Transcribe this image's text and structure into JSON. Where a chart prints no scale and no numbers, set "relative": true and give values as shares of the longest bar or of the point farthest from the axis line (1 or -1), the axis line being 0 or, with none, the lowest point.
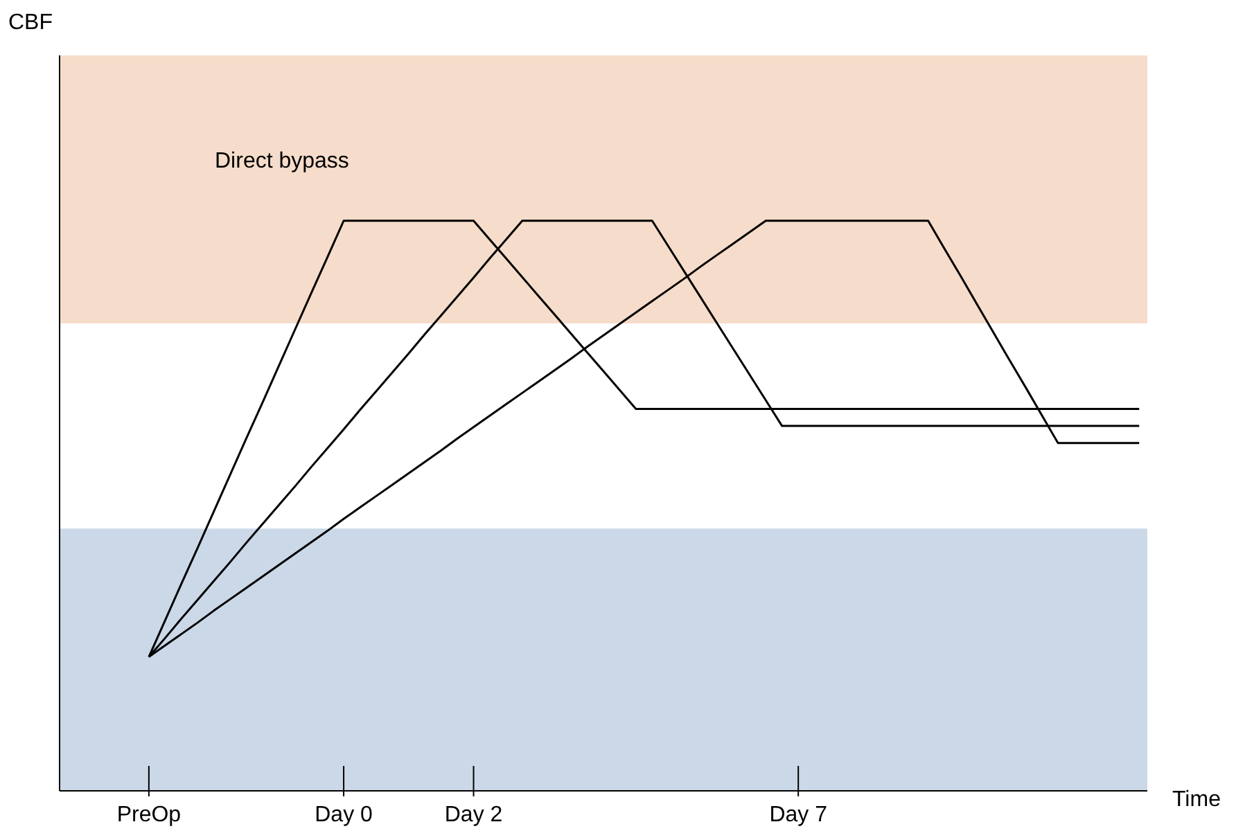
{
  "chart_data": {
    "type": "line",
    "relative": true,
    "xlabel": "Time",
    "annotations": [
      "CBF"
    ],
    "marker": "none",
    "categories": [
      null,
      null,
      null,
      null,
      null,
      "PreOp",
      null,
      null,
      null,
      null,
      null,
      null,
      null,
      null,
      null,
      null,
      null,
      "Day 0",
      null,
      null,
      null,
      null,
      null,
      null,
      null,
      "Day 2",
      null,
      null,
      null,
      null,
      null,
      null,
      null,
      null,
      null,
      null,
      null,
      null,
      null,
      null,
      null,
      null,
      null,
      null,
      null,
      "Day 7",
      null,
      null,
      null,
      null,
      null,
      null,
      null,
      null,
      null,
      null,
      null,
      null,
      null,
      null,
      null,
      null,
      null,
      null,
      null,
      null,
      null
    ],
    "bands": [
      {
        "axis": "y",
        "from": 0.82,
        "to": 1.29,
        "label": "Direct bypass",
        "color": "#f6dcca"
      },
      {
        "axis": "y",
        "from": 0,
        "to": 0.46,
        "label": null,
        "color": "#cbd8e8"
      }
    ],
    "series": [
      {
        "color": "#000000",
        "values": [
          null,
          null,
          null,
          null,
          null,
          0.235,
          0.299,
          0.363,
          0.426,
          0.49,
          0.554,
          0.618,
          0.681,
          0.745,
          0.809,
          0.873,
          0.936,
          1,
          1,
          1,
          1,
          1,
          1,
          1,
          1,
          1,
          0.967,
          0.934,
          0.901,
          0.868,
          0.835,
          0.802,
          0.769,
          0.736,
          0.703,
          0.67,
          0.67,
          0.67,
          0.67,
          0.67,
          0.67,
          0.67,
          0.67,
          0.67,
          0.67,
          0.67,
          0.67,
          0.67,
          0.67,
          0.67,
          0.67,
          0.67,
          0.67,
          0.67,
          0.67,
          0.67,
          0.67,
          0.67,
          0.67,
          0.67,
          0.67,
          0.67,
          0.67,
          0.67,
          0.67,
          0.67,
          0.67
        ]
      },
      {
        "color": "#000000",
        "values": [
          null,
          null,
          null,
          null,
          null,
          0.235,
          0.268,
          0.302,
          0.335,
          0.368,
          0.401,
          0.435,
          0.468,
          0.501,
          0.534,
          0.568,
          0.601,
          0.634,
          0.668,
          0.701,
          0.734,
          0.767,
          0.801,
          0.834,
          0.867,
          0.9,
          0.934,
          0.967,
          1,
          1,
          1,
          1,
          1,
          1,
          1,
          1,
          1,
          0.955,
          0.91,
          0.865,
          0.82,
          0.775,
          0.73,
          0.685,
          0.64,
          0.64,
          0.64,
          0.64,
          0.64,
          0.64,
          0.64,
          0.64,
          0.64,
          0.64,
          0.64,
          0.64,
          0.64,
          0.64,
          0.64,
          0.64,
          0.64,
          0.64,
          0.64,
          0.64,
          0.64,
          0.64,
          0.64
        ]
      },
      {
        "color": "#000000",
        "values": [
          null,
          null,
          null,
          null,
          null,
          0.235,
          0.255,
          0.275,
          0.295,
          0.316,
          0.336,
          0.356,
          0.376,
          0.396,
          0.416,
          0.436,
          0.456,
          0.477,
          0.497,
          0.517,
          0.537,
          0.557,
          0.577,
          0.597,
          0.618,
          0.638,
          0.658,
          0.678,
          0.698,
          0.718,
          0.738,
          0.758,
          0.779,
          0.799,
          0.819,
          0.839,
          0.859,
          0.879,
          0.899,
          0.92,
          0.94,
          0.96,
          0.98,
          1,
          1,
          1,
          1,
          1,
          1,
          1,
          1,
          1,
          1,
          1,
          0.951,
          0.903,
          0.854,
          0.805,
          0.756,
          0.708,
          0.659,
          0.61,
          0.61,
          0.61,
          0.61,
          0.61,
          0.61
        ]
      }
    ]
  }
}
